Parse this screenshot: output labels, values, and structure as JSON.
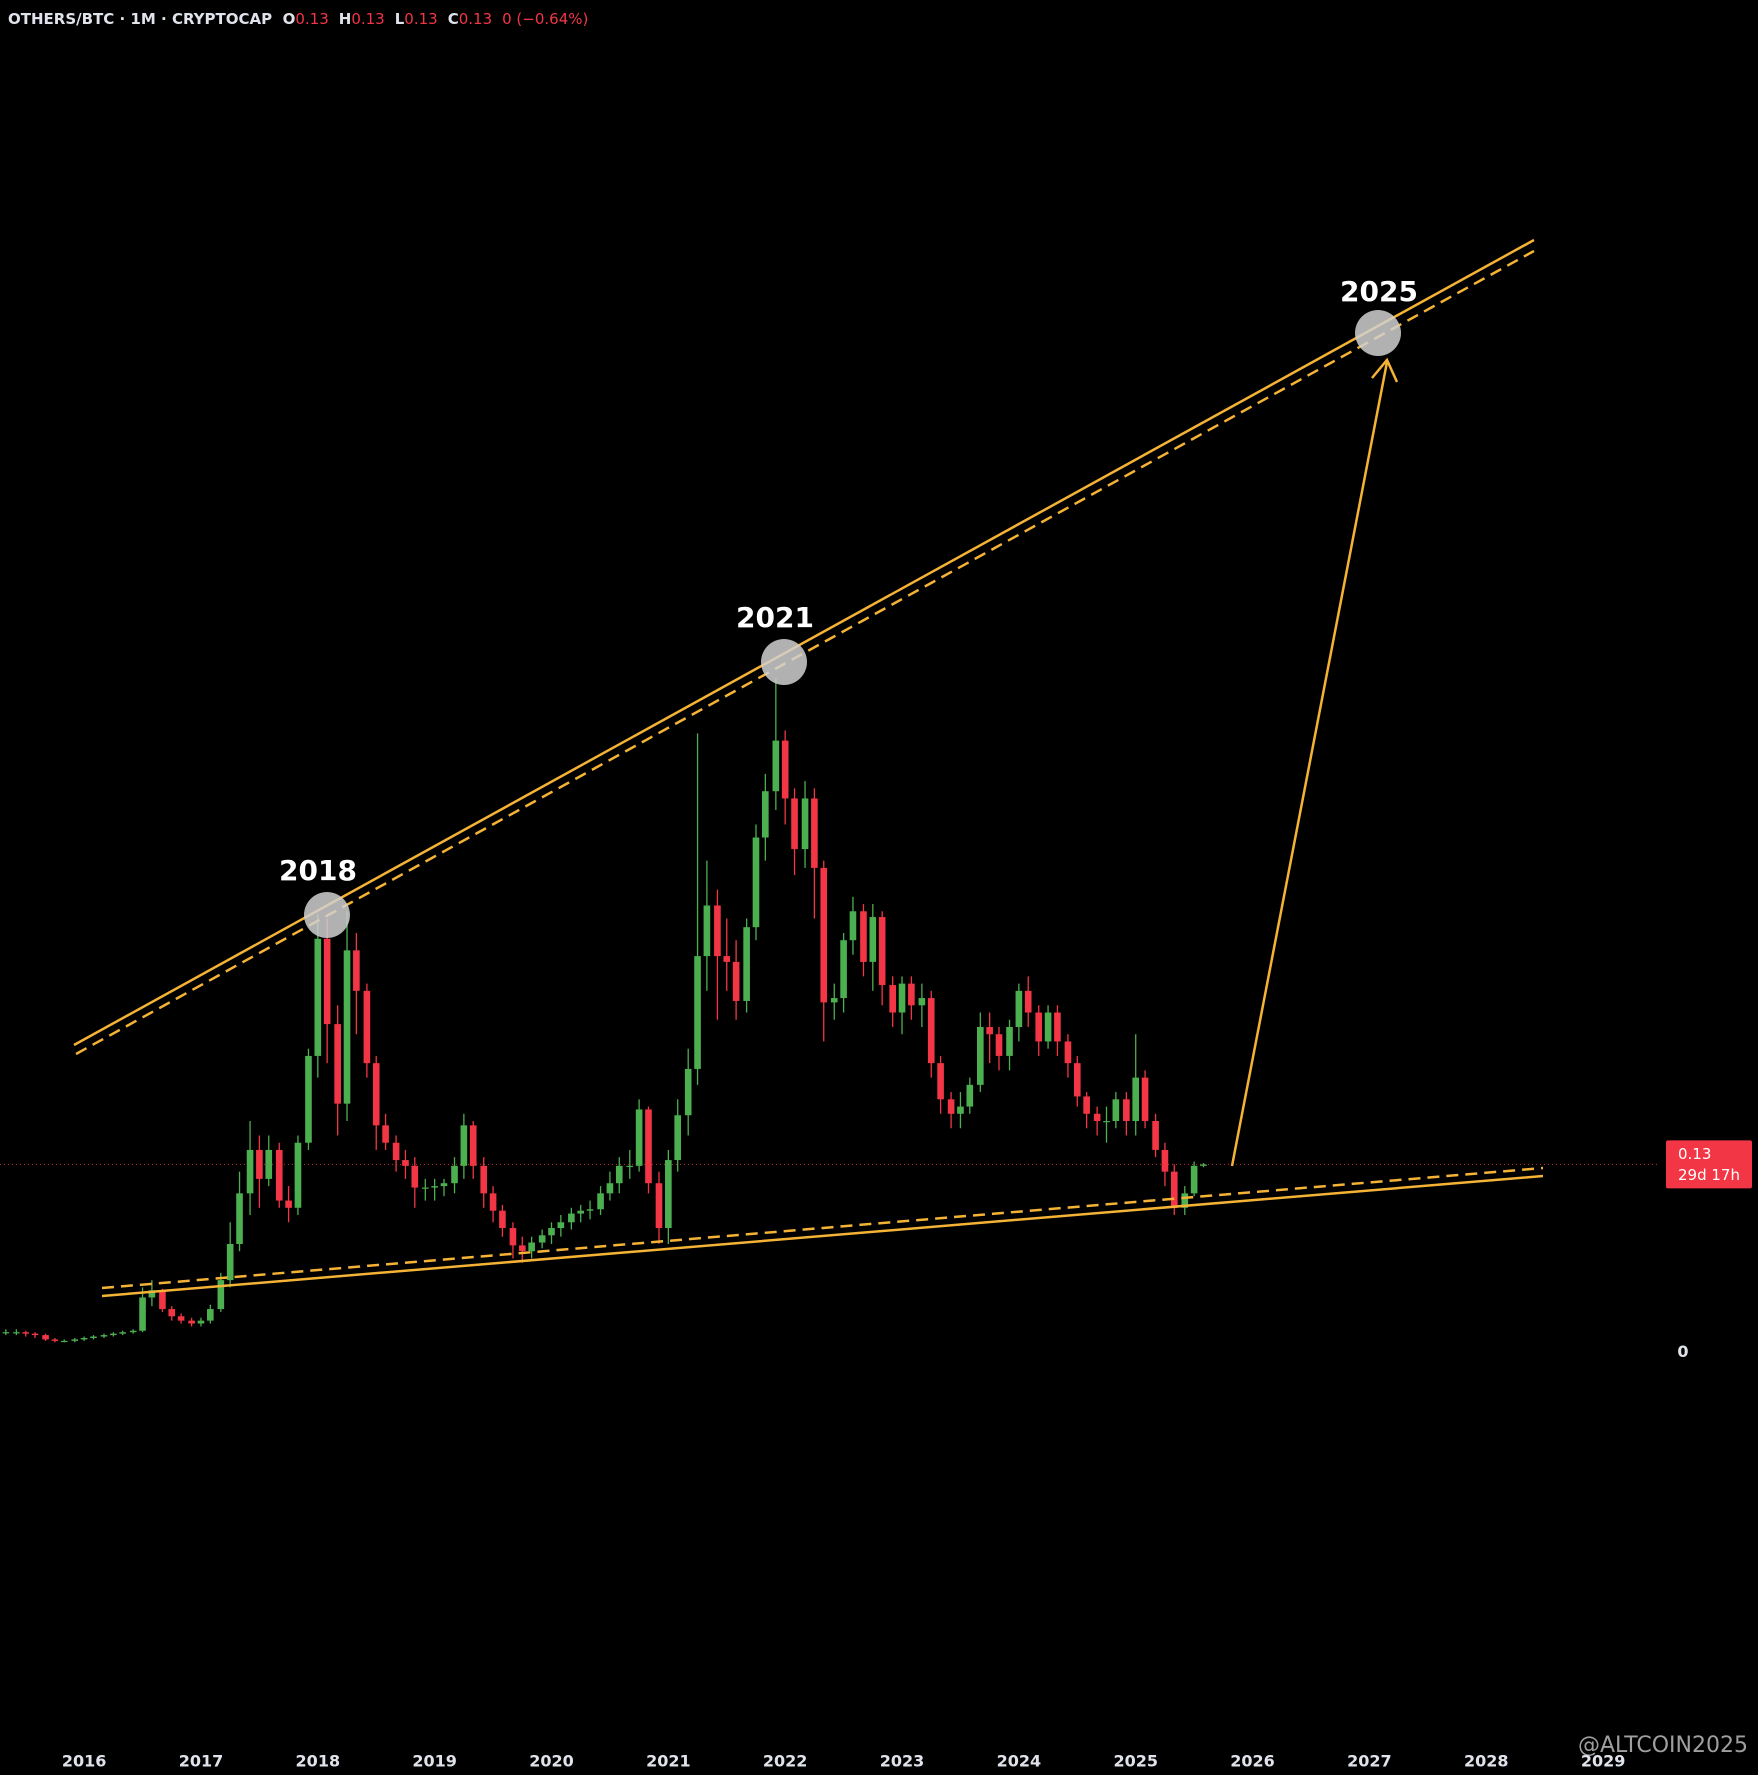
{
  "chart_data": {
    "type": "candlestick",
    "legend": {
      "symbol": "OTHERS/BTC · 1M · CRYPTOCAP",
      "ohlc": [
        {
          "key": "O",
          "value": 0.13
        },
        {
          "key": "H",
          "value": 0.13
        },
        {
          "key": "L",
          "value": 0.13
        },
        {
          "key": "C",
          "value": 0.13
        }
      ],
      "change": "0 (−0.64%)"
    },
    "annotations": [
      "2018",
      "2021",
      "2025"
    ],
    "last_price": 0.13,
    "countdown": "29d 17h",
    "watermark": "@ALTCOIN2025",
    "up_color": "#4caf50",
    "down_color": "#f23645",
    "xlim": [
      2015.28,
      2029.47
    ],
    "xticks": [
      2016,
      2017,
      2018,
      2019,
      2020,
      2021,
      2022,
      2023,
      2024,
      2025,
      2026,
      2027,
      2028,
      2029
    ],
    "ylim": [
      -0.27,
      0.935
    ],
    "yticks": [
      0
    ],
    "x": [
      2015.33,
      2015.42,
      2015.5,
      2015.58,
      2015.67,
      2015.75,
      2015.83,
      2015.92,
      2016,
      2016.08,
      2016.17,
      2016.25,
      2016.33,
      2016.42,
      2016.5,
      2016.58,
      2016.67,
      2016.75,
      2016.83,
      2016.92,
      2017,
      2017.08,
      2017.17,
      2017.25,
      2017.33,
      2017.42,
      2017.5,
      2017.58,
      2017.67,
      2017.75,
      2017.83,
      2017.92,
      2018,
      2018.08,
      2018.17,
      2018.25,
      2018.33,
      2018.42,
      2018.5,
      2018.58,
      2018.67,
      2018.75,
      2018.83,
      2018.92,
      2019,
      2019.08,
      2019.17,
      2019.25,
      2019.33,
      2019.42,
      2019.5,
      2019.58,
      2019.67,
      2019.75,
      2019.83,
      2019.92,
      2020,
      2020.08,
      2020.17,
      2020.25,
      2020.33,
      2020.42,
      2020.5,
      2020.58,
      2020.67,
      2020.75,
      2020.83,
      2020.92,
      2021,
      2021.08,
      2021.17,
      2021.25,
      2021.33,
      2021.42,
      2021.5,
      2021.58,
      2021.67,
      2021.75,
      2021.83,
      2021.92,
      2022,
      2022.08,
      2022.17,
      2022.25,
      2022.33,
      2022.42,
      2022.5,
      2022.58,
      2022.67,
      2022.75,
      2022.83,
      2022.92,
      2023,
      2023.08,
      2023.17,
      2023.25,
      2023.33,
      2023.42,
      2023.5,
      2023.58,
      2023.67,
      2023.75,
      2023.83,
      2023.92,
      2024,
      2024.08,
      2024.17,
      2024.25,
      2024.33,
      2024.42,
      2024.5,
      2024.58,
      2024.67,
      2024.75,
      2024.83,
      2024.92,
      2025,
      2025.08,
      2025.17,
      2025.25,
      2025.33,
      2025.42,
      2025.5,
      2025.58
    ],
    "open": [
      0.014,
      0.014,
      0.014,
      0.013,
      0.012,
      0.009,
      0.008,
      0.008,
      0.009,
      0.01,
      0.011,
      0.012,
      0.013,
      0.014,
      0.015,
      0.038,
      0.043,
      0.03,
      0.025,
      0.022,
      0.02,
      0.022,
      0.03,
      0.05,
      0.075,
      0.11,
      0.14,
      0.12,
      0.14,
      0.105,
      0.1,
      0.145,
      0.205,
      0.286,
      0.227,
      0.172,
      0.278,
      0.25,
      0.2,
      0.157,
      0.145,
      0.133,
      0.129,
      0.114,
      0.114,
      0.115,
      0.117,
      0.129,
      0.157,
      0.129,
      0.11,
      0.098,
      0.086,
      0.074,
      0.07,
      0.076,
      0.081,
      0.086,
      0.09,
      0.096,
      0.098,
      0.099,
      0.11,
      0.117,
      0.129,
      0.129,
      0.168,
      0.117,
      0.086,
      0.133,
      0.164,
      0.196,
      0.274,
      0.309,
      0.274,
      0.27,
      0.243,
      0.294,
      0.356,
      0.388,
      0.423,
      0.383,
      0.348,
      0.383,
      0.335,
      0.242,
      0.245,
      0.285,
      0.305,
      0.27,
      0.301,
      0.254,
      0.235,
      0.255,
      0.24,
      0.245,
      0.2,
      0.175,
      0.165,
      0.17,
      0.185,
      0.225,
      0.22,
      0.205,
      0.225,
      0.25,
      0.235,
      0.215,
      0.235,
      0.215,
      0.2,
      0.177,
      0.165,
      0.16,
      0.16,
      0.175,
      0.16,
      0.19,
      0.16,
      0.14,
      0.125,
      0.1,
      0.11,
      0.129
    ],
    "high": [
      0.016,
      0.016,
      0.015,
      0.014,
      0.013,
      0.01,
      0.009,
      0.01,
      0.011,
      0.012,
      0.013,
      0.014,
      0.015,
      0.016,
      0.045,
      0.05,
      0.044,
      0.032,
      0.027,
      0.024,
      0.024,
      0.033,
      0.055,
      0.09,
      0.125,
      0.16,
      0.15,
      0.15,
      0.145,
      0.115,
      0.15,
      0.21,
      0.303,
      0.3,
      0.24,
      0.305,
      0.29,
      0.255,
      0.205,
      0.165,
      0.15,
      0.14,
      0.135,
      0.12,
      0.12,
      0.12,
      0.135,
      0.165,
      0.16,
      0.135,
      0.115,
      0.102,
      0.09,
      0.08,
      0.08,
      0.085,
      0.09,
      0.095,
      0.1,
      0.102,
      0.105,
      0.115,
      0.125,
      0.135,
      0.14,
      0.175,
      0.17,
      0.125,
      0.14,
      0.175,
      0.21,
      0.428,
      0.34,
      0.32,
      0.3,
      0.285,
      0.3,
      0.365,
      0.4,
      0.466,
      0.43,
      0.39,
      0.395,
      0.39,
      0.34,
      0.255,
      0.29,
      0.315,
      0.31,
      0.31,
      0.305,
      0.26,
      0.26,
      0.26,
      0.255,
      0.25,
      0.205,
      0.18,
      0.18,
      0.19,
      0.235,
      0.235,
      0.225,
      0.23,
      0.255,
      0.26,
      0.24,
      0.24,
      0.24,
      0.22,
      0.205,
      0.18,
      0.17,
      0.17,
      0.18,
      0.18,
      0.22,
      0.195,
      0.165,
      0.145,
      0.13,
      0.115,
      0.132,
      0.131
    ],
    "low": [
      0.012,
      0.012,
      0.011,
      0.01,
      0.008,
      0.007,
      0.007,
      0.007,
      0.008,
      0.009,
      0.01,
      0.011,
      0.012,
      0.013,
      0.014,
      0.032,
      0.028,
      0.022,
      0.02,
      0.018,
      0.018,
      0.02,
      0.028,
      0.045,
      0.07,
      0.095,
      0.1,
      0.115,
      0.1,
      0.09,
      0.095,
      0.14,
      0.19,
      0.2,
      0.15,
      0.16,
      0.22,
      0.19,
      0.14,
      0.14,
      0.125,
      0.12,
      0.1,
      0.105,
      0.105,
      0.108,
      0.11,
      0.12,
      0.12,
      0.1,
      0.09,
      0.08,
      0.065,
      0.062,
      0.065,
      0.072,
      0.075,
      0.08,
      0.085,
      0.09,
      0.092,
      0.095,
      0.105,
      0.11,
      0.12,
      0.125,
      0.11,
      0.075,
      0.075,
      0.125,
      0.15,
      0.185,
      0.25,
      0.23,
      0.25,
      0.23,
      0.235,
      0.285,
      0.34,
      0.375,
      0.365,
      0.33,
      0.335,
      0.3,
      0.215,
      0.23,
      0.235,
      0.275,
      0.26,
      0.25,
      0.24,
      0.225,
      0.22,
      0.23,
      0.225,
      0.19,
      0.165,
      0.155,
      0.155,
      0.165,
      0.18,
      0.2,
      0.195,
      0.195,
      0.215,
      0.225,
      0.205,
      0.21,
      0.205,
      0.19,
      0.17,
      0.155,
      0.15,
      0.145,
      0.155,
      0.15,
      0.15,
      0.155,
      0.135,
      0.115,
      0.095,
      0.095,
      0.108,
      0.128
    ],
    "close": [
      0.014,
      0.014,
      0.013,
      0.012,
      0.009,
      0.008,
      0.008,
      0.009,
      0.01,
      0.011,
      0.012,
      0.013,
      0.014,
      0.015,
      0.038,
      0.043,
      0.03,
      0.025,
      0.022,
      0.02,
      0.022,
      0.03,
      0.05,
      0.075,
      0.11,
      0.14,
      0.12,
      0.14,
      0.105,
      0.1,
      0.145,
      0.205,
      0.286,
      0.227,
      0.172,
      0.278,
      0.25,
      0.2,
      0.157,
      0.145,
      0.133,
      0.129,
      0.114,
      0.114,
      0.115,
      0.117,
      0.129,
      0.157,
      0.129,
      0.11,
      0.098,
      0.086,
      0.074,
      0.07,
      0.076,
      0.081,
      0.086,
      0.09,
      0.096,
      0.098,
      0.099,
      0.11,
      0.117,
      0.129,
      0.129,
      0.168,
      0.117,
      0.086,
      0.133,
      0.164,
      0.196,
      0.274,
      0.309,
      0.274,
      0.27,
      0.243,
      0.294,
      0.356,
      0.388,
      0.423,
      0.383,
      0.348,
      0.383,
      0.335,
      0.242,
      0.245,
      0.285,
      0.305,
      0.27,
      0.301,
      0.254,
      0.235,
      0.255,
      0.24,
      0.245,
      0.2,
      0.175,
      0.165,
      0.17,
      0.185,
      0.225,
      0.22,
      0.205,
      0.225,
      0.25,
      0.235,
      0.215,
      0.235,
      0.215,
      0.2,
      0.177,
      0.165,
      0.16,
      0.16,
      0.175,
      0.16,
      0.19,
      0.16,
      0.14,
      0.125,
      0.1,
      0.11,
      0.129,
      0.13
    ]
  }
}
